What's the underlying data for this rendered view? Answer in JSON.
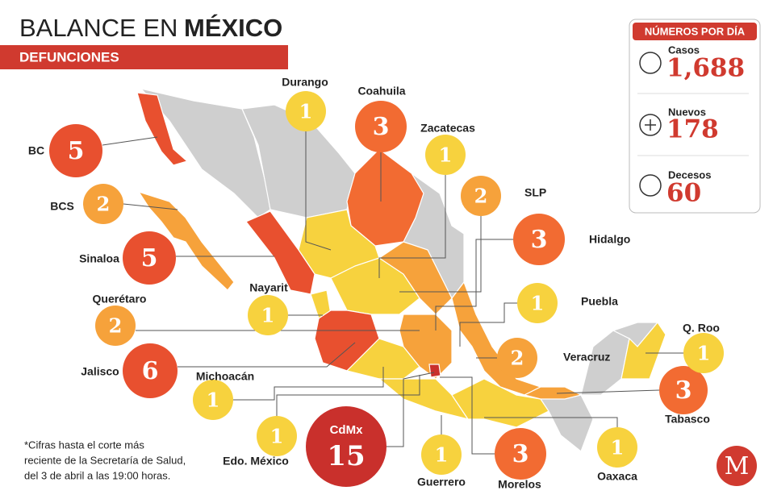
{
  "header": {
    "title_regular": "BALANCE EN",
    "title_bold": "MÉXICO",
    "subtitle": "DEFUNCIONES"
  },
  "panel": {
    "title": "NÚMEROS POR DÍA",
    "items": [
      {
        "label": "Casos",
        "value": "1,688"
      },
      {
        "label": "Nuevos",
        "value": 178
      },
      {
        "label": "Decesos",
        "value": 60
      }
    ]
  },
  "states": [
    {
      "name": "BC",
      "deaths": 5,
      "color": "#e8502f"
    },
    {
      "name": "BCS",
      "deaths": 2,
      "color": "#f6a23b"
    },
    {
      "name": "Sinaloa",
      "deaths": 5,
      "color": "#e8502f"
    },
    {
      "name": "Querétaro",
      "deaths": 2,
      "color": "#f6a23b"
    },
    {
      "name": "Jalisco",
      "deaths": 6,
      "color": "#e8502f"
    },
    {
      "name": "Michoacán",
      "deaths": 1,
      "color": "#f7d23e"
    },
    {
      "name": "Edo. México",
      "deaths": 1,
      "color": "#f7d23e"
    },
    {
      "name": "CdMx",
      "deaths": 15,
      "color": "#c9302c"
    },
    {
      "name": "Guerrero",
      "deaths": 1,
      "color": "#f7d23e"
    },
    {
      "name": "Morelos",
      "deaths": 3,
      "color": "#f26b32"
    },
    {
      "name": "Oaxaca",
      "deaths": 1,
      "color": "#f7d23e"
    },
    {
      "name": "Tabasco",
      "deaths": 3,
      "color": "#f26b32"
    },
    {
      "name": "Q. Roo",
      "deaths": 1,
      "color": "#f7d23e"
    },
    {
      "name": "Veracruz",
      "deaths": 2,
      "color": "#f6a23b"
    },
    {
      "name": "Puebla",
      "deaths": 1,
      "color": "#f7d23e"
    },
    {
      "name": "Hidalgo",
      "deaths": 3,
      "color": "#f26b32"
    },
    {
      "name": "SLP",
      "deaths": 2,
      "color": "#f6a23b"
    },
    {
      "name": "Zacatecas",
      "deaths": 1,
      "color": "#f7d23e"
    },
    {
      "name": "Coahuila",
      "deaths": 3,
      "color": "#f26b32"
    },
    {
      "name": "Durango",
      "deaths": 1,
      "color": "#f7d23e"
    },
    {
      "name": "Nayarit",
      "deaths": 1,
      "color": "#f7d23e"
    }
  ],
  "footnote": [
    "*Cifras hasta el corte más",
    "reciente de la Secretaría de Salud,",
    "del 3 de abril a las 19:00 horas."
  ],
  "logo": "M"
}
